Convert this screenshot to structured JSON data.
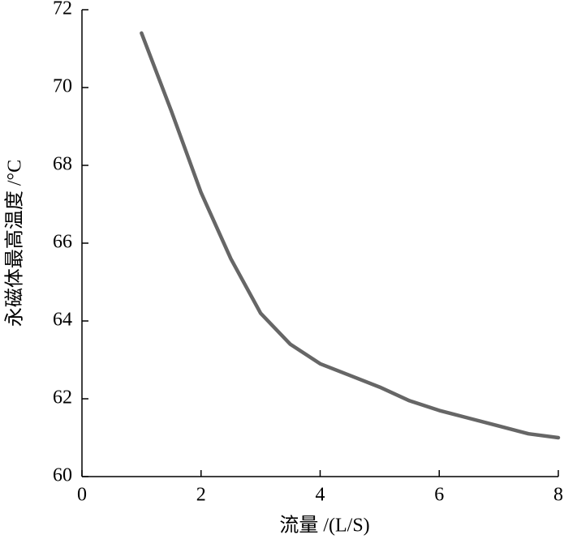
{
  "chart_data": {
    "type": "line",
    "xlabel": "流量 /(L/S)",
    "ylabel": "永磁体最高温度 /°C",
    "x": [
      1,
      1.5,
      2,
      2.5,
      3,
      3.5,
      4,
      4.5,
      5,
      5.5,
      6,
      6.5,
      7,
      7.5,
      8
    ],
    "values": [
      71.4,
      69.4,
      67.3,
      65.6,
      64.2,
      63.4,
      62.9,
      62.6,
      62.3,
      61.95,
      61.7,
      61.5,
      61.3,
      61.1,
      61.0
    ],
    "color": "#666666",
    "xlim": [
      0,
      8
    ],
    "xticks": [
      0,
      2,
      4,
      6,
      8
    ],
    "ylim": [
      60,
      72
    ],
    "yticks": [
      60,
      62,
      64,
      66,
      68,
      70,
      72
    ],
    "grid": false
  }
}
